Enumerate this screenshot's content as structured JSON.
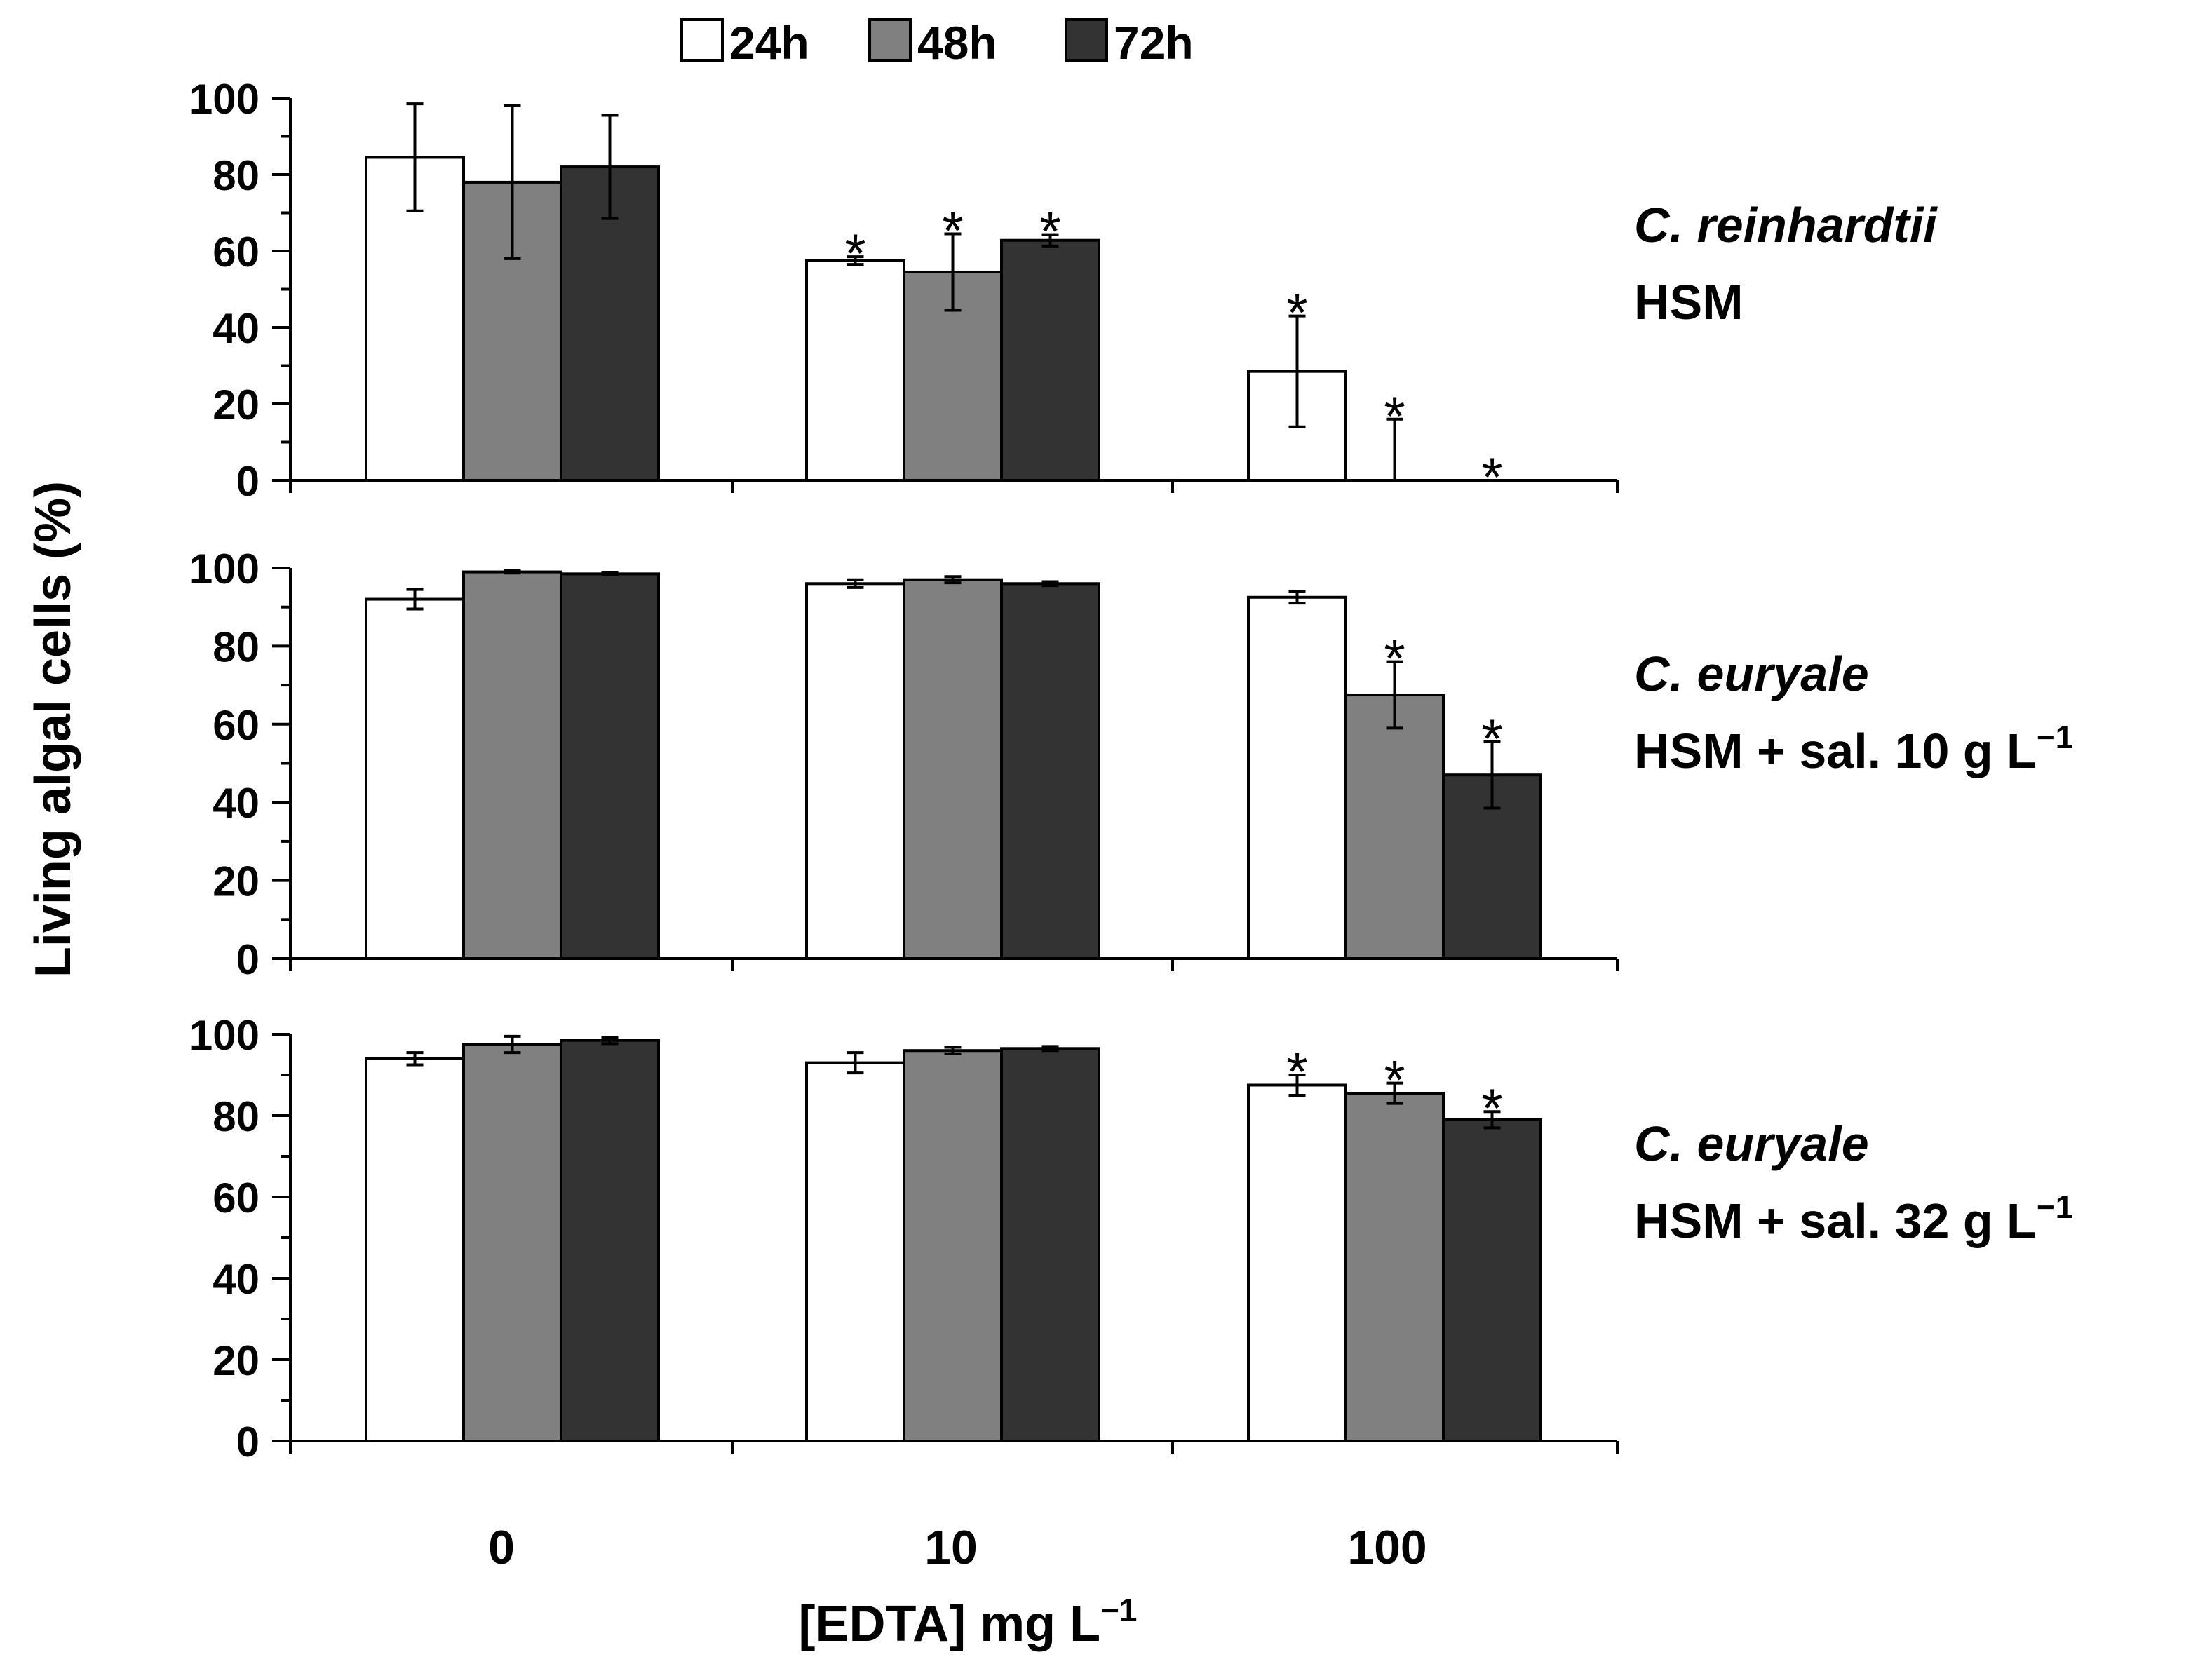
{
  "chart_data": {
    "type": "bar",
    "categories": [
      "0",
      "10",
      "100"
    ],
    "series_names": [
      "24h",
      "48h",
      "72h"
    ],
    "series_colors": [
      "#ffffff",
      "#808080",
      "#333333"
    ],
    "xlabel_main": "[EDTA] mg L",
    "xlabel_sup": "−1",
    "ylabel": "Living algal cells (%)",
    "ylim": [
      0,
      100
    ],
    "yticks": [
      "0",
      "20",
      "40",
      "60",
      "80",
      "100"
    ],
    "significance_marker": "*",
    "panels": [
      {
        "species": "C. reinhardtii",
        "medium": "HSM",
        "medium_sup": "",
        "series": [
          {
            "name": "24h",
            "values": [
              84.5,
              57.5,
              28.5
            ],
            "errors": [
              14,
              1,
              14.5
            ]
          },
          {
            "name": "48h",
            "values": [
              78,
              54.5,
              0
            ],
            "errors": [
              20,
              10,
              16
            ]
          },
          {
            "name": "72h",
            "values": [
              82,
              62.8,
              0
            ],
            "errors": [
              13.5,
              1.5,
              0
            ]
          }
        ],
        "significant": [
          [
            false,
            true,
            true
          ],
          [
            false,
            true,
            true
          ],
          [
            false,
            true,
            true
          ]
        ]
      },
      {
        "species": "C. euryale",
        "medium": "HSM + sal. 10 g L",
        "medium_sup": "−1",
        "series": [
          {
            "name": "24h",
            "values": [
              92,
              96,
              92.5
            ],
            "errors": [
              2.5,
              1,
              1.5
            ]
          },
          {
            "name": "48h",
            "values": [
              99,
              97,
              67.5
            ],
            "errors": [
              0.3,
              0.8,
              8.5
            ]
          },
          {
            "name": "72h",
            "values": [
              98.5,
              96,
              47
            ],
            "errors": [
              0.3,
              0.5,
              8.5
            ]
          }
        ],
        "significant": [
          [
            false,
            false,
            false
          ],
          [
            false,
            false,
            true
          ],
          [
            false,
            false,
            true
          ]
        ]
      },
      {
        "species": "C. euryale",
        "medium": "HSM + sal. 32 g L",
        "medium_sup": "−1",
        "series": [
          {
            "name": "24h",
            "values": [
              94,
              93,
              87.5
            ],
            "errors": [
              1.5,
              2.5,
              2.5
            ]
          },
          {
            "name": "48h",
            "values": [
              97.5,
              96,
              85.5
            ],
            "errors": [
              2,
              0.8,
              2.5
            ]
          },
          {
            "name": "72h",
            "values": [
              98.5,
              96.5,
              79
            ],
            "errors": [
              0.8,
              0.5,
              2
            ]
          }
        ],
        "significant": [
          [
            false,
            false,
            true
          ],
          [
            false,
            false,
            true
          ],
          [
            false,
            false,
            true
          ]
        ]
      }
    ]
  }
}
